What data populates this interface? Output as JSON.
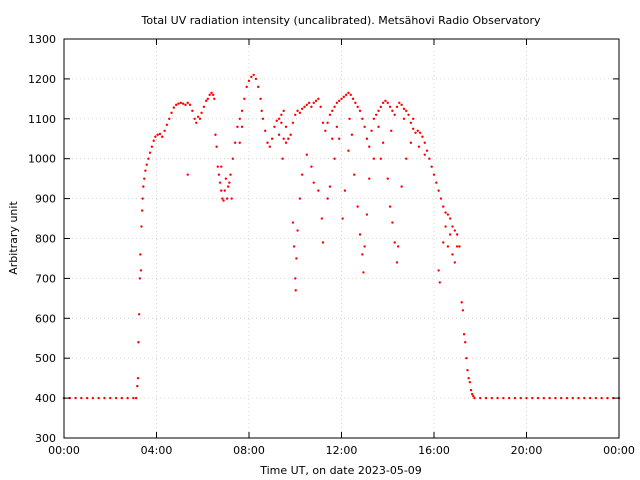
{
  "chart_data": {
    "type": "scatter",
    "title": "Total UV radiation intensity (uncalibrated). Metsähovi Radio Observatory",
    "xlabel": "Time UT, on date 2023-05-09",
    "ylabel": "Arbitrary unit",
    "x_unit": "hours UT",
    "xlim": [
      0,
      24
    ],
    "ylim": [
      300,
      1300
    ],
    "x_ticks": [
      {
        "value": 0,
        "label": "00:00"
      },
      {
        "value": 4,
        "label": "04:00"
      },
      {
        "value": 8,
        "label": "08:00"
      },
      {
        "value": 12,
        "label": "12:00"
      },
      {
        "value": 16,
        "label": "16:00"
      },
      {
        "value": 20,
        "label": "20:00"
      },
      {
        "value": 24,
        "label": "00:00"
      }
    ],
    "y_ticks": [
      {
        "value": 300,
        "label": "300"
      },
      {
        "value": 400,
        "label": "400"
      },
      {
        "value": 500,
        "label": "500"
      },
      {
        "value": 600,
        "label": "600"
      },
      {
        "value": 700,
        "label": "700"
      },
      {
        "value": 800,
        "label": "800"
      },
      {
        "value": 900,
        "label": "900"
      },
      {
        "value": 1000,
        "label": "1000"
      },
      {
        "value": 1100,
        "label": "1100"
      },
      {
        "value": 1200,
        "label": "1200"
      },
      {
        "value": 1300,
        "label": "1300"
      }
    ],
    "grid": true,
    "point_color": "#ff0000",
    "series": [
      {
        "points": [
          [
            0.0,
            400
          ],
          [
            0.25,
            400
          ],
          [
            0.5,
            400
          ],
          [
            0.75,
            400
          ],
          [
            1.0,
            400
          ],
          [
            1.25,
            400
          ],
          [
            1.5,
            400
          ],
          [
            1.75,
            400
          ],
          [
            2.0,
            400
          ],
          [
            2.25,
            400
          ],
          [
            2.5,
            400
          ],
          [
            2.75,
            400
          ],
          [
            3.0,
            400
          ],
          [
            3.12,
            400
          ],
          [
            3.17,
            430
          ],
          [
            3.2,
            450
          ],
          [
            3.22,
            540
          ],
          [
            3.25,
            610
          ],
          [
            3.28,
            700
          ],
          [
            3.3,
            760
          ],
          [
            3.33,
            720
          ],
          [
            3.35,
            830
          ],
          [
            3.38,
            870
          ],
          [
            3.4,
            900
          ],
          [
            3.43,
            930
          ],
          [
            3.47,
            950
          ],
          [
            3.52,
            970
          ],
          [
            3.58,
            985
          ],
          [
            3.65,
            1000
          ],
          [
            3.72,
            1015
          ],
          [
            3.8,
            1030
          ],
          [
            3.88,
            1045
          ],
          [
            3.95,
            1055
          ],
          [
            4.05,
            1060
          ],
          [
            4.15,
            1062
          ],
          [
            4.25,
            1055
          ],
          [
            4.35,
            1070
          ],
          [
            4.45,
            1085
          ],
          [
            4.55,
            1100
          ],
          [
            4.65,
            1115
          ],
          [
            4.75,
            1128
          ],
          [
            4.85,
            1135
          ],
          [
            4.95,
            1138
          ],
          [
            5.05,
            1140
          ],
          [
            5.15,
            1138
          ],
          [
            5.25,
            1135
          ],
          [
            5.35,
            1140
          ],
          [
            5.45,
            1135
          ],
          [
            5.55,
            1120
          ],
          [
            5.65,
            1100
          ],
          [
            5.72,
            1090
          ],
          [
            5.8,
            1105
          ],
          [
            5.88,
            1100
          ],
          [
            5.95,
            1115
          ],
          [
            6.05,
            1130
          ],
          [
            6.15,
            1145
          ],
          [
            6.22,
            1150
          ],
          [
            6.3,
            1160
          ],
          [
            6.38,
            1165
          ],
          [
            6.45,
            1160
          ],
          [
            6.5,
            1150
          ],
          [
            6.55,
            1060
          ],
          [
            6.6,
            1030
          ],
          [
            6.65,
            980
          ],
          [
            6.7,
            960
          ],
          [
            6.75,
            940
          ],
          [
            6.8,
            920
          ],
          [
            6.85,
            900
          ],
          [
            6.9,
            895
          ],
          [
            6.95,
            920
          ],
          [
            7.0,
            950
          ],
          [
            7.1,
            930
          ],
          [
            7.2,
            960
          ],
          [
            7.3,
            1000
          ],
          [
            7.4,
            1040
          ],
          [
            7.5,
            1080
          ],
          [
            7.6,
            1100
          ],
          [
            7.7,
            1120
          ],
          [
            7.8,
            1150
          ],
          [
            7.9,
            1180
          ],
          [
            8.0,
            1195
          ],
          [
            8.1,
            1205
          ],
          [
            8.2,
            1210
          ],
          [
            8.3,
            1200
          ],
          [
            8.4,
            1180
          ],
          [
            8.5,
            1150
          ],
          [
            8.6,
            1100
          ],
          [
            8.7,
            1070
          ],
          [
            8.8,
            1040
          ],
          [
            8.9,
            1030
          ],
          [
            9.0,
            1050
          ],
          [
            9.1,
            1080
          ],
          [
            9.2,
            1095
          ],
          [
            9.3,
            1100
          ],
          [
            9.4,
            1110
          ],
          [
            9.5,
            1120
          ],
          [
            9.6,
            1080
          ],
          [
            9.7,
            1050
          ],
          [
            9.8,
            1060
          ],
          [
            9.9,
            1090
          ],
          [
            10.0,
            1110
          ],
          [
            10.1,
            1120
          ],
          [
            10.2,
            1115
          ],
          [
            10.3,
            1125
          ],
          [
            10.4,
            1130
          ],
          [
            10.5,
            1135
          ],
          [
            10.6,
            1140
          ],
          [
            10.7,
            1130
          ],
          [
            10.8,
            1140
          ],
          [
            10.9,
            1145
          ],
          [
            11.0,
            1150
          ],
          [
            11.1,
            1130
          ],
          [
            11.2,
            1090
          ],
          [
            11.3,
            1070
          ],
          [
            11.4,
            1090
          ],
          [
            11.5,
            1110
          ],
          [
            11.6,
            1120
          ],
          [
            11.7,
            1130
          ],
          [
            11.8,
            1140
          ],
          [
            11.9,
            1145
          ],
          [
            12.0,
            1150
          ],
          [
            12.1,
            1155
          ],
          [
            12.2,
            1160
          ],
          [
            12.3,
            1165
          ],
          [
            12.4,
            1160
          ],
          [
            12.5,
            1150
          ],
          [
            12.6,
            1140
          ],
          [
            12.7,
            1130
          ],
          [
            12.8,
            1120
          ],
          [
            12.9,
            1100
          ],
          [
            13.0,
            1080
          ],
          [
            13.1,
            1050
          ],
          [
            13.2,
            1030
          ],
          [
            13.3,
            1070
          ],
          [
            13.4,
            1100
          ],
          [
            13.5,
            1110
          ],
          [
            13.6,
            1120
          ],
          [
            13.7,
            1130
          ],
          [
            13.8,
            1140
          ],
          [
            13.9,
            1145
          ],
          [
            14.0,
            1140
          ],
          [
            14.1,
            1130
          ],
          [
            14.2,
            1120
          ],
          [
            14.3,
            1110
          ],
          [
            14.4,
            1130
          ],
          [
            14.5,
            1140
          ],
          [
            14.6,
            1135
          ],
          [
            14.7,
            1125
          ],
          [
            14.8,
            1120
          ],
          [
            14.9,
            1110
          ],
          [
            15.0,
            1090
          ],
          [
            15.1,
            1075
          ],
          [
            15.2,
            1065
          ],
          [
            15.3,
            1070
          ],
          [
            15.4,
            1065
          ],
          [
            15.5,
            1055
          ],
          [
            15.6,
            1040
          ],
          [
            15.7,
            1020
          ],
          [
            15.8,
            1000
          ],
          [
            15.9,
            980
          ],
          [
            16.0,
            960
          ],
          [
            16.1,
            940
          ],
          [
            16.2,
            920
          ],
          [
            16.3,
            900
          ],
          [
            16.4,
            880
          ],
          [
            16.5,
            865
          ],
          [
            16.6,
            860
          ],
          [
            16.7,
            850
          ],
          [
            16.8,
            830
          ],
          [
            16.9,
            820
          ],
          [
            17.0,
            810
          ],
          [
            17.1,
            780
          ],
          [
            17.2,
            640
          ],
          [
            17.25,
            620
          ],
          [
            17.3,
            560
          ],
          [
            17.35,
            540
          ],
          [
            17.4,
            500
          ],
          [
            17.45,
            470
          ],
          [
            17.5,
            450
          ],
          [
            17.55,
            440
          ],
          [
            17.6,
            420
          ],
          [
            17.65,
            410
          ],
          [
            17.7,
            405
          ],
          [
            17.75,
            400
          ],
          [
            18.0,
            400
          ],
          [
            18.25,
            400
          ],
          [
            18.5,
            400
          ],
          [
            18.75,
            400
          ],
          [
            19.0,
            400
          ],
          [
            19.25,
            400
          ],
          [
            19.5,
            400
          ],
          [
            19.75,
            400
          ],
          [
            20.0,
            400
          ],
          [
            20.25,
            400
          ],
          [
            20.5,
            400
          ],
          [
            20.75,
            400
          ],
          [
            21.0,
            400
          ],
          [
            21.25,
            400
          ],
          [
            21.5,
            400
          ],
          [
            21.75,
            400
          ],
          [
            22.0,
            400
          ],
          [
            22.25,
            400
          ],
          [
            22.5,
            400
          ],
          [
            22.75,
            400
          ],
          [
            23.0,
            400
          ],
          [
            23.25,
            400
          ],
          [
            23.5,
            400
          ],
          [
            23.75,
            400
          ],
          [
            24.0,
            400
          ],
          [
            5.35,
            960
          ],
          [
            9.9,
            840
          ],
          [
            9.95,
            780
          ],
          [
            10.0,
            700
          ],
          [
            10.02,
            670
          ],
          [
            10.05,
            750
          ],
          [
            10.1,
            820
          ],
          [
            10.2,
            900
          ],
          [
            10.3,
            960
          ],
          [
            10.5,
            1010
          ],
          [
            10.7,
            980
          ],
          [
            10.8,
            940
          ],
          [
            11.0,
            920
          ],
          [
            11.15,
            850
          ],
          [
            11.2,
            790
          ],
          [
            11.4,
            900
          ],
          [
            11.5,
            930
          ],
          [
            11.7,
            1000
          ],
          [
            11.9,
            1050
          ],
          [
            12.05,
            850
          ],
          [
            12.15,
            920
          ],
          [
            12.3,
            1020
          ],
          [
            12.55,
            960
          ],
          [
            12.7,
            880
          ],
          [
            12.8,
            810
          ],
          [
            12.9,
            760
          ],
          [
            12.95,
            715
          ],
          [
            13.0,
            780
          ],
          [
            13.1,
            860
          ],
          [
            13.2,
            950
          ],
          [
            13.4,
            1000
          ],
          [
            13.6,
            1080
          ],
          [
            13.8,
            1040
          ],
          [
            14.0,
            950
          ],
          [
            14.1,
            880
          ],
          [
            14.2,
            840
          ],
          [
            14.3,
            790
          ],
          [
            14.4,
            740
          ],
          [
            14.45,
            780
          ],
          [
            14.6,
            930
          ],
          [
            14.8,
            1000
          ],
          [
            15.0,
            1040
          ],
          [
            15.1,
            1100
          ],
          [
            16.2,
            720
          ],
          [
            16.25,
            690
          ],
          [
            16.4,
            790
          ],
          [
            16.6,
            780
          ],
          [
            16.8,
            760
          ],
          [
            16.9,
            740
          ],
          [
            16.7,
            810
          ],
          [
            16.5,
            830
          ],
          [
            17.0,
            780
          ],
          [
            7.7,
            1080
          ],
          [
            7.6,
            1040
          ],
          [
            8.55,
            1120
          ],
          [
            9.3,
            1060
          ],
          [
            9.5,
            1050
          ],
          [
            9.4,
            1090
          ],
          [
            6.8,
            980
          ],
          [
            7.05,
            900
          ],
          [
            7.15,
            940
          ],
          [
            7.25,
            900
          ],
          [
            9.45,
            1000
          ],
          [
            9.6,
            1040
          ],
          [
            12.45,
            1060
          ],
          [
            12.35,
            1100
          ],
          [
            11.6,
            1050
          ],
          [
            11.8,
            1080
          ],
          [
            13.7,
            1000
          ],
          [
            14.15,
            1070
          ],
          [
            14.7,
            1100
          ],
          [
            15.35,
            1030
          ],
          [
            15.6,
            1010
          ]
        ]
      }
    ]
  }
}
